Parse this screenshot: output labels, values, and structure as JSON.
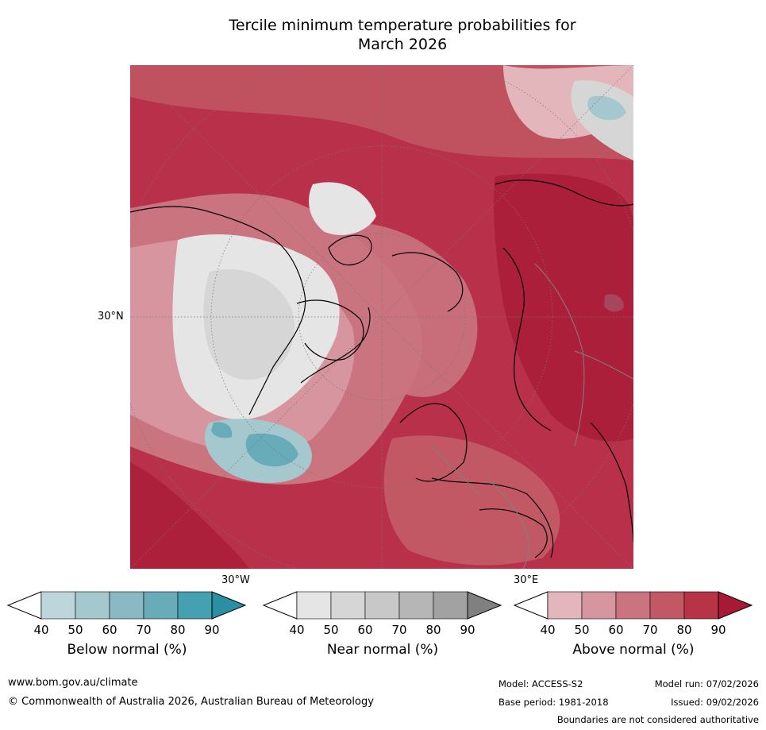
{
  "title": {
    "line1": "Tercile minimum temperature probabilities for",
    "line2": "March 2026"
  },
  "map": {
    "projection": "polar stereographic (north)",
    "grid_labels": {
      "lat_30n": "30°N",
      "lon_30w": "30°W",
      "lon_30e": "30°E"
    }
  },
  "legends": [
    {
      "label": "Below normal (%)",
      "ticks": [
        "40",
        "50",
        "60",
        "70",
        "80",
        "90"
      ],
      "colors": [
        "#ffffff",
        "#bcd6dc",
        "#a5c8cf",
        "#8ab8c4",
        "#69acb9",
        "#45a1b1",
        "#2a8fa2"
      ]
    },
    {
      "label": "Near normal (%)",
      "ticks": [
        "40",
        "50",
        "60",
        "70",
        "80",
        "90"
      ],
      "colors": [
        "#ffffff",
        "#e5e5e5",
        "#d6d6d6",
        "#c8c8c8",
        "#b6b6b6",
        "#a3a2a2",
        "#808080"
      ]
    },
    {
      "label": "Above normal (%)",
      "ticks": [
        "40",
        "50",
        "60",
        "70",
        "80",
        "90"
      ],
      "colors": [
        "#ffffff",
        "#e3b6bc",
        "#d7959f",
        "#ca7480",
        "#c15864",
        "#b73447",
        "#a81935"
      ]
    }
  ],
  "footer": {
    "website": "www.bom.gov.au/climate",
    "copyright": "© Commonwealth of Australia 2026, Australian Bureau of Meteorology",
    "model": "Model: ACCESS-S2",
    "base_period": "Base period: 1981-2018",
    "model_run": "Model run: 07/02/2026",
    "issued": "Issued: 09/02/2026",
    "disclaimer": "Boundaries are not considered authoritative"
  }
}
